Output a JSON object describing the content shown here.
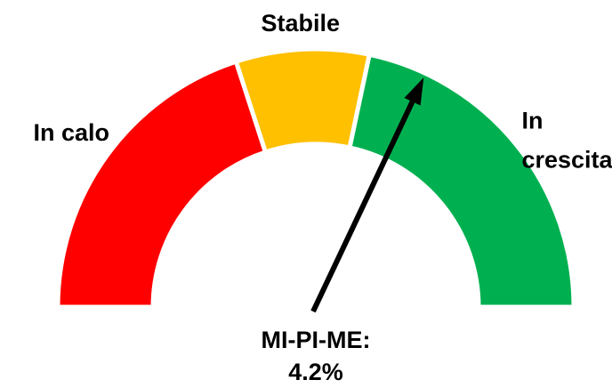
{
  "chart_data": {
    "type": "gauge",
    "segments": [
      {
        "name": "In calo",
        "color": "#ff0000",
        "value": 12
      },
      {
        "name": "Stabile",
        "color": "#ffc000",
        "value": 5
      },
      {
        "name": "In crescita",
        "color": "#00b050",
        "value": 13
      }
    ],
    "ylim": [
      -15,
      15
    ],
    "needle": {
      "label": "MI-PI-ME:",
      "value": 4.2,
      "value_label": "4.2%",
      "color": "#000000"
    }
  }
}
